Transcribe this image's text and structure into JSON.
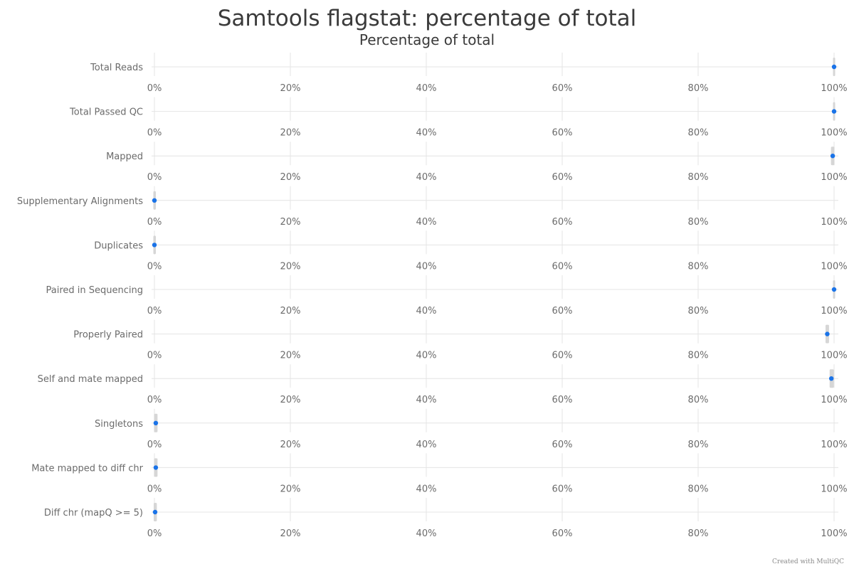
{
  "chart_data": {
    "type": "scatter",
    "title": "Samtools flagstat: percentage of total",
    "subtitle": "Percentage of total",
    "xlim": [
      0,
      100
    ],
    "x_tick_labels": [
      "0%",
      "20%",
      "40%",
      "60%",
      "80%",
      "100%"
    ],
    "x_tick_values": [
      0,
      20,
      40,
      60,
      80,
      100
    ],
    "categories": [
      "Total Reads",
      "Total Passed QC",
      "Mapped",
      "Supplementary Alignments",
      "Duplicates",
      "Paired in Sequencing",
      "Properly Paired",
      "Self and mate mapped",
      "Singletons",
      "Mate mapped to diff chr",
      "Diff chr (mapQ >= 5)"
    ],
    "values": [
      100,
      100,
      99.8,
      0,
      0,
      100,
      99.0,
      99.6,
      0.2,
      0.2,
      0.1
    ],
    "range_low": [
      100,
      100,
      99.7,
      0,
      0,
      100,
      98.9,
      99.5,
      0.1,
      0.1,
      0.05
    ],
    "range_high": [
      100,
      100,
      99.9,
      0.05,
      0.05,
      100,
      99.1,
      99.8,
      0.3,
      0.3,
      0.2
    ],
    "grid": true,
    "colors": {
      "point": "#1a73e8",
      "range": "#d6d6d6",
      "grid": "#e4e4e4"
    }
  },
  "footer": {
    "credit": "Created with MultiQC"
  }
}
